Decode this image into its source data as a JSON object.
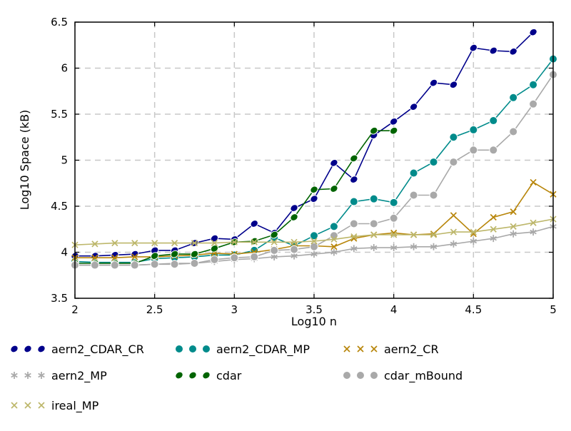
{
  "chart_data": {
    "type": "line",
    "xlabel": "Log10 n",
    "ylabel": "Log10 Space (kB)",
    "xlim": [
      2,
      5
    ],
    "ylim": [
      3.5,
      6.5
    ],
    "x_ticks": [
      2,
      2.5,
      3,
      3.5,
      4,
      4.5,
      5
    ],
    "x_tick_labels": [
      "2",
      "2.5",
      "3",
      "3.5",
      "4",
      "4.5",
      "5"
    ],
    "y_ticks": [
      3.5,
      4,
      4.5,
      5,
      5.5,
      6,
      6.5
    ],
    "y_tick_labels": [
      "3.5",
      "4",
      "4.5",
      "5",
      "5.5",
      "6",
      "6.5"
    ],
    "grid": true,
    "legend_position": "bottom",
    "series": [
      {
        "name": "aern2_CDAR_CR",
        "color": "#00008b",
        "marker": "ellipse",
        "x": [
          2,
          2.125,
          2.25,
          2.375,
          2.5,
          2.625,
          2.75,
          2.875,
          3,
          3.125,
          3.25,
          3.375,
          3.5,
          3.625,
          3.75,
          3.875,
          4,
          4.125,
          4.25,
          4.375,
          4.5,
          4.625,
          4.75,
          4.875
        ],
        "y": [
          3.96,
          3.96,
          3.97,
          3.98,
          4.02,
          4.02,
          4.1,
          4.15,
          4.14,
          4.31,
          4.21,
          4.48,
          4.58,
          4.97,
          4.79,
          5.27,
          5.42,
          5.58,
          5.84,
          5.82,
          6.22,
          6.19,
          6.18,
          6.39
        ]
      },
      {
        "name": "aern2_CDAR_MP",
        "color": "#008b8b",
        "marker": "circle",
        "x": [
          2,
          2.125,
          2.25,
          2.375,
          2.5,
          2.625,
          2.75,
          2.875,
          3,
          3.125,
          3.25,
          3.375,
          3.5,
          3.625,
          3.75,
          3.875,
          4,
          4.125,
          4.25,
          4.375,
          4.5,
          4.625,
          4.75,
          4.875,
          5
        ],
        "y": [
          3.9,
          3.89,
          3.89,
          3.89,
          3.93,
          3.94,
          3.95,
          3.97,
          3.97,
          4.02,
          4.16,
          4.07,
          4.18,
          4.28,
          4.55,
          4.58,
          4.54,
          4.86,
          4.98,
          5.25,
          5.33,
          5.43,
          5.68,
          5.82,
          6.1
        ]
      },
      {
        "name": "aern2_CR",
        "color": "#b8860b",
        "marker": "cross",
        "x": [
          2,
          2.125,
          2.25,
          2.375,
          2.5,
          2.625,
          2.75,
          2.875,
          3,
          3.125,
          3.25,
          3.375,
          3.5,
          3.625,
          3.75,
          3.875,
          4,
          4.125,
          4.25,
          4.375,
          4.5,
          4.625,
          4.75,
          4.875,
          5
        ],
        "y": [
          3.94,
          3.94,
          3.94,
          3.95,
          3.95,
          3.96,
          3.97,
          3.99,
          3.98,
          4.0,
          4.03,
          4.07,
          4.07,
          4.06,
          4.15,
          4.19,
          4.21,
          4.19,
          4.2,
          4.4,
          4.2,
          4.38,
          4.44,
          4.76,
          4.63
        ]
      },
      {
        "name": "aern2_MP",
        "color": "#a9a9a9",
        "marker": "star",
        "x": [
          2,
          2.125,
          2.25,
          2.375,
          2.5,
          2.625,
          2.75,
          2.875,
          3,
          3.125,
          3.25,
          3.375,
          3.5,
          3.625,
          3.75,
          3.875,
          4,
          4.125,
          4.25,
          4.375,
          4.5,
          4.625,
          4.75,
          4.875,
          5
        ],
        "y": [
          3.86,
          3.86,
          3.86,
          3.86,
          3.87,
          3.88,
          3.88,
          3.9,
          3.92,
          3.93,
          3.95,
          3.96,
          3.98,
          4.0,
          4.04,
          4.05,
          4.05,
          4.06,
          4.06,
          4.09,
          4.12,
          4.15,
          4.2,
          4.22,
          4.28
        ]
      },
      {
        "name": "cdar",
        "color": "#006400",
        "marker": "ellipse",
        "x": [
          2,
          2.125,
          2.25,
          2.375,
          2.5,
          2.625,
          2.75,
          2.875,
          3,
          3.125,
          3.25,
          3.375,
          3.5,
          3.625,
          3.75,
          3.875,
          4
        ],
        "y": [
          3.88,
          3.88,
          3.88,
          3.88,
          3.96,
          3.98,
          3.98,
          4.04,
          4.11,
          4.12,
          4.19,
          4.38,
          4.68,
          4.69,
          5.02,
          5.32,
          5.32
        ]
      },
      {
        "name": "cdar_mBound",
        "color": "#a9a9a9",
        "marker": "circle",
        "x": [
          2,
          2.125,
          2.25,
          2.375,
          2.5,
          2.625,
          2.75,
          2.875,
          3,
          3.125,
          3.25,
          3.375,
          3.5,
          3.625,
          3.75,
          3.875,
          4,
          4.125,
          4.25,
          4.375,
          4.5,
          4.625,
          4.75,
          4.875,
          5
        ],
        "y": [
          3.86,
          3.86,
          3.86,
          3.86,
          3.87,
          3.87,
          3.88,
          3.92,
          3.94,
          3.95,
          4.02,
          4.03,
          4.06,
          4.18,
          4.31,
          4.31,
          4.37,
          4.62,
          4.62,
          4.98,
          5.11,
          5.11,
          5.31,
          5.61,
          5.93
        ]
      },
      {
        "name": "ireal_MP",
        "color": "#bdb76b",
        "marker": "cross",
        "x": [
          2,
          2.125,
          2.25,
          2.375,
          2.5,
          2.625,
          2.75,
          2.875,
          3,
          3.125,
          3.25,
          3.375,
          3.5,
          3.625,
          3.75,
          3.875,
          4,
          4.125,
          4.25,
          4.375,
          4.5,
          4.625,
          4.75,
          4.875,
          5
        ],
        "y": [
          4.08,
          4.09,
          4.1,
          4.1,
          4.1,
          4.1,
          4.1,
          4.1,
          4.11,
          4.11,
          4.11,
          4.11,
          4.12,
          4.14,
          4.17,
          4.19,
          4.19,
          4.19,
          4.19,
          4.22,
          4.22,
          4.25,
          4.28,
          4.32,
          4.36
        ]
      }
    ]
  }
}
